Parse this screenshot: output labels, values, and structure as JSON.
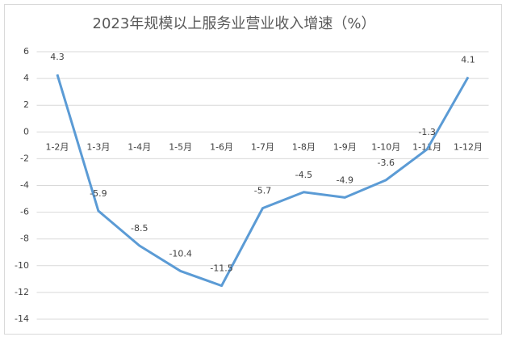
{
  "chart_data": {
    "type": "line",
    "title": "2023年规模以上服务业营业收入增速（%）",
    "categories": [
      "1-2月",
      "1-3月",
      "1-4月",
      "1-5月",
      "1-6月",
      "1-7月",
      "1-8月",
      "1-9月",
      "1-10月",
      "1-11月",
      "1-12月"
    ],
    "values": [
      4.3,
      -5.9,
      -8.5,
      -10.4,
      -11.5,
      -5.7,
      -4.5,
      -4.9,
      -3.6,
      -1.3,
      4.1
    ],
    "color": "#5b9bd5",
    "ylim": [
      -14,
      6
    ],
    "yticks": [
      -14,
      -12,
      -10,
      -8,
      -6,
      -4,
      -2,
      0,
      2,
      4,
      6
    ],
    "grid": true
  }
}
